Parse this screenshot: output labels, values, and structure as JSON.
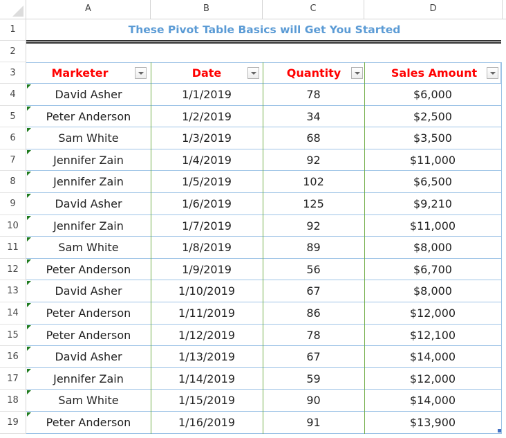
{
  "spreadsheet": {
    "column_headers": [
      "A",
      "B",
      "C",
      "D"
    ],
    "row_numbers": [
      "1",
      "2",
      "3",
      "4",
      "5",
      "6",
      "7",
      "8",
      "9",
      "10",
      "11",
      "12",
      "13",
      "14",
      "15",
      "16",
      "17",
      "18",
      "19"
    ],
    "title": "These Pivot Table Basics will Get You Started",
    "colors": {
      "title": "#5b9bd5",
      "header_text": "#ff0000",
      "table_border": "#9dc3e6",
      "column_separator": "#70ad47"
    },
    "table": {
      "headers": [
        "Marketer",
        "Date",
        "Quantity",
        "Sales Amount"
      ],
      "rows": [
        [
          "David Asher",
          "1/1/2019",
          "78",
          "$6,000"
        ],
        [
          "Peter Anderson",
          "1/2/2019",
          "34",
          "$2,500"
        ],
        [
          "Sam White",
          "1/3/2019",
          "68",
          "$3,500"
        ],
        [
          "Jennifer Zain",
          "1/4/2019",
          "92",
          "$11,000"
        ],
        [
          "Jennifer Zain",
          "1/5/2019",
          "102",
          "$6,500"
        ],
        [
          "David Asher",
          "1/6/2019",
          "125",
          "$9,210"
        ],
        [
          "Jennifer Zain",
          "1/7/2019",
          "92",
          "$11,000"
        ],
        [
          "Sam White",
          "1/8/2019",
          "89",
          "$8,000"
        ],
        [
          "Peter Anderson",
          "1/9/2019",
          "56",
          "$6,700"
        ],
        [
          "David Asher",
          "1/10/2019",
          "67",
          "$8,000"
        ],
        [
          "Peter Anderson",
          "1/11/2019",
          "86",
          "$12,000"
        ],
        [
          "Peter Anderson",
          "1/12/2019",
          "78",
          "$12,100"
        ],
        [
          "David Asher",
          "1/13/2019",
          "67",
          "$14,000"
        ],
        [
          "Jennifer Zain",
          "1/14/2019",
          "59",
          "$12,000"
        ],
        [
          "Sam White",
          "1/15/2019",
          "90",
          "$14,000"
        ],
        [
          "Peter Anderson",
          "1/16/2019",
          "91",
          "$13,900"
        ]
      ]
    }
  }
}
